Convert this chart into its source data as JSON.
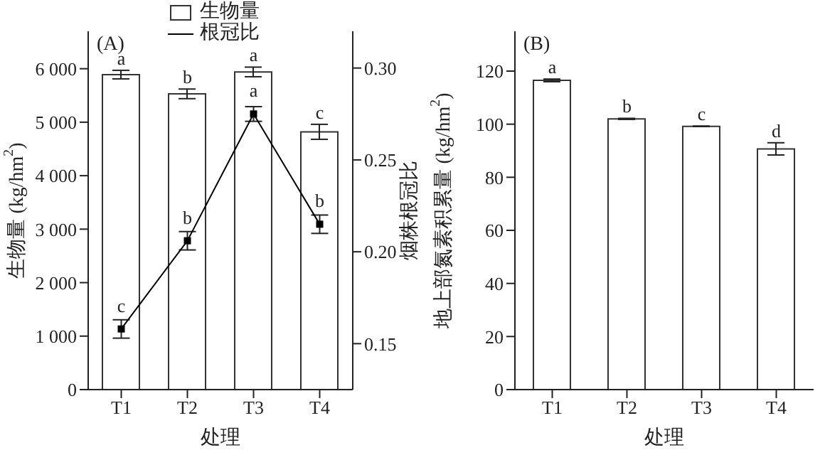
{
  "chart_data": [
    {
      "type": "bar",
      "xlabel": "处理",
      "ylabel": "生物量 (kg/hm$^{2}$)",
      "y2label": "烟株根冠比",
      "categories": [
        "T1",
        "T2",
        "T3",
        "T4"
      ],
      "series": [
        {
          "name": "生物量",
          "color": "#ffffff",
          "values": [
            5890,
            5530,
            5940,
            4820
          ],
          "errors": [
            80,
            90,
            90,
            140
          ]
        },
        {
          "name": "根冠比",
          "type": "line",
          "axis": "y2",
          "color": "#000000",
          "values": [
            0.158,
            0.206,
            0.275,
            0.215
          ],
          "errors": [
            0.005,
            0.005,
            0.004,
            0.005
          ]
        }
      ],
      "ylim": [
        0,
        6700
      ],
      "yticks": [
        0,
        {
          "value": 1000,
          "label": "1 000"
        },
        {
          "value": 2000,
          "label": "2 000"
        },
        {
          "value": 3000,
          "label": "3 000"
        },
        {
          "value": 4000,
          "label": "4 000"
        },
        {
          "value": 5000,
          "label": "5 000"
        },
        {
          "value": 6000,
          "label": "6 000"
        }
      ],
      "y2lim": [
        0.125,
        0.32
      ],
      "y2ticks": [
        0.15,
        {
          "value": 0.2,
          "label": "0.20"
        },
        0.25,
        {
          "value": 0.3,
          "label": "0.30"
        }
      ],
      "marker": "square",
      "line_style": "solid",
      "legend": "top",
      "annotations": [
        "(A)",
        {
          "text": "a",
          "x": "T1",
          "y": 5890
        },
        {
          "text": "b",
          "x": "T2",
          "y": 5530
        },
        {
          "text": "a",
          "x": "T3",
          "y": 5940
        },
        {
          "text": "c",
          "x": "T4",
          "y": 4820
        },
        {
          "text": "c",
          "x": "T1",
          "y": 1134
        },
        {
          "text": "b",
          "x": "T2",
          "y": 2783
        },
        {
          "text": "a",
          "x": "T3",
          "y": 5154
        },
        {
          "text": "b",
          "x": "T4",
          "y": 3092
        }
      ]
    },
    {
      "type": "bar",
      "xlabel": "处理",
      "ylabel": "地上部氮素积累量 (kg/hm$^{2}$)",
      "categories": [
        "T1",
        "T2",
        "T3",
        "T4"
      ],
      "series": [
        {
          "color": "#ffffff",
          "values": [
            116.5,
            102,
            99.2,
            90.7
          ],
          "errors": [
            0.5,
            0.2,
            0.1,
            2.3
          ]
        }
      ],
      "ylim": [
        0,
        135
      ],
      "yticks": [
        0,
        20,
        40,
        60,
        80,
        100,
        120
      ],
      "annotations": [
        "(B)",
        {
          "text": "a",
          "x": "T1",
          "y": 116.5
        },
        {
          "text": "b",
          "x": "T2",
          "y": 102
        },
        {
          "text": "c",
          "x": "T3",
          "y": 99.2
        },
        {
          "text": "d",
          "x": "T4",
          "y": 90.7
        }
      ]
    }
  ]
}
